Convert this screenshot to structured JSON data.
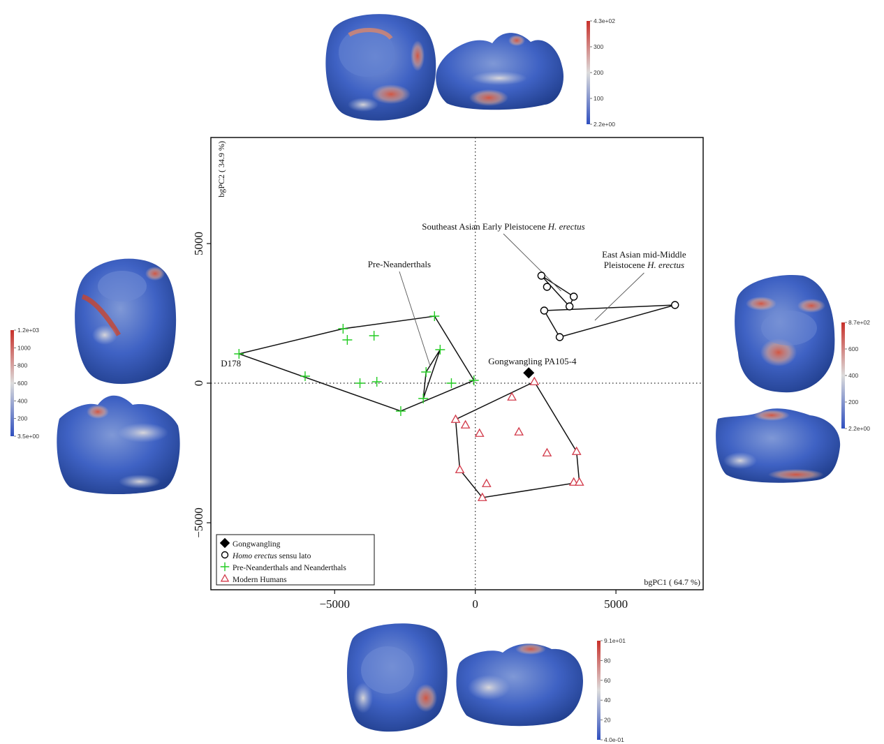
{
  "chart_data": {
    "type": "scatter",
    "xlabel": "bgPC1 ( 64.7 %)",
    "ylabel": "bgPC2 ( 34.9 %)",
    "xlim": [
      -9400,
      8100
    ],
    "ylim": [
      -7400,
      8800
    ],
    "xticks": [
      {
        "value": -5000,
        "label": "−5000"
      },
      {
        "value": 0,
        "label": "0"
      },
      {
        "value": 5000,
        "label": "5000"
      }
    ],
    "yticks": [
      {
        "value": -5000,
        "label": "−5000"
      },
      {
        "value": 0,
        "label": "0"
      },
      {
        "value": 5000,
        "label": "5000"
      }
    ],
    "reference_lines": {
      "x": 0,
      "y": 0,
      "style": "dotted"
    },
    "series": [
      {
        "name": "Gongwangling",
        "marker": "diamond",
        "color": "#000000",
        "points": [
          [
            1900,
            370
          ]
        ],
        "hull": []
      },
      {
        "name": "Homo erectus sensu lato",
        "marker": "circle",
        "color": "#000000",
        "points": [
          [
            2350,
            3850
          ],
          [
            2550,
            3450
          ],
          [
            3500,
            3100
          ],
          [
            3350,
            2750
          ],
          [
            2450,
            2600
          ],
          [
            3000,
            1650
          ],
          [
            7100,
            2800
          ]
        ],
        "hull": [
          [
            [
              2350,
              3850
            ],
            [
              3500,
              3100
            ],
            [
              3350,
              2750
            ],
            [
              2350,
              3850
            ]
          ],
          [
            [
              2450,
              2600
            ],
            [
              7100,
              2800
            ],
            [
              3000,
              1650
            ],
            [
              2450,
              2600
            ]
          ]
        ]
      },
      {
        "name": "Pre-Neanderthals and Neanderthals",
        "marker": "plus",
        "color": "#22cc22",
        "points": [
          [
            -8400,
            1050
          ],
          [
            -4700,
            1950
          ],
          [
            -4550,
            1550
          ],
          [
            -3600,
            1700
          ],
          [
            -1450,
            2400
          ],
          [
            -1250,
            1200
          ],
          [
            -1750,
            400
          ],
          [
            -6050,
            250
          ],
          [
            -4100,
            0
          ],
          [
            -3500,
            50
          ],
          [
            -850,
            0
          ],
          [
            -50,
            100
          ],
          [
            -1850,
            -550
          ],
          [
            -2650,
            -1000
          ]
        ],
        "hull": [
          [
            [
              -8400,
              1050
            ],
            [
              -4700,
              1950
            ],
            [
              -1450,
              2400
            ],
            [
              -50,
              100
            ],
            [
              -2650,
              -1000
            ],
            [
              -8400,
              1050
            ]
          ],
          [
            [
              -1250,
              1200
            ],
            [
              -1750,
              400
            ],
            [
              -1850,
              -550
            ],
            [
              -1250,
              1200
            ]
          ]
        ]
      },
      {
        "name": "Modern Humans",
        "marker": "triangle",
        "color": "#d23a4a",
        "points": [
          [
            2100,
            50
          ],
          [
            1300,
            -500
          ],
          [
            -700,
            -1300
          ],
          [
            -350,
            -1500
          ],
          [
            150,
            -1800
          ],
          [
            1550,
            -1750
          ],
          [
            2550,
            -2500
          ],
          [
            3600,
            -2450
          ],
          [
            -550,
            -3100
          ],
          [
            400,
            -3600
          ],
          [
            3500,
            -3550
          ],
          [
            3700,
            -3550
          ],
          [
            250,
            -4100
          ]
        ],
        "hull": [
          [
            [
              2100,
              50
            ],
            [
              3600,
              -2450
            ],
            [
              3700,
              -3550
            ],
            [
              250,
              -4100
            ],
            [
              -550,
              -3100
            ],
            [
              -700,
              -1300
            ],
            [
              2100,
              50
            ]
          ]
        ]
      }
    ],
    "annotations": [
      {
        "text": "D178",
        "x": -8400,
        "y": 1050
      },
      {
        "text": "Gongwangling PA105-4",
        "x": 1900,
        "y": 370
      },
      {
        "text": "Pre-Neanderthals",
        "x": -2700,
        "y": 4150,
        "target": [
          -1600,
          600
        ]
      },
      {
        "text_parts": [
          "Southeast Asian Early Pleistocene ",
          "H. erectus"
        ],
        "x": 1000,
        "y": 5500,
        "target": [
          3050,
          3300
        ]
      },
      {
        "text_lines": [
          "East Asian mid-Middle",
          "Pleistocene H. erectus"
        ],
        "x": 6000,
        "y": 4500,
        "target": [
          4250,
          2250
        ]
      }
    ]
  },
  "legend": {
    "placement": "bottom-left",
    "entries": [
      {
        "symbol": "diamond",
        "color": "#000000",
        "label": "Gongwangling"
      },
      {
        "symbol": "circle",
        "color": "#000000",
        "label_italic": "Homo erectus",
        "label": " sensu lato"
      },
      {
        "symbol": "plus",
        "color": "#22cc22",
        "label": "Pre-Neanderthals and Neanderthals"
      },
      {
        "symbol": "triangle",
        "color": "#d23a4a",
        "label": "Modern Humans"
      }
    ]
  },
  "colorbars": [
    {
      "id": "top",
      "labels": [
        "4.3e+02",
        "300",
        "200",
        "100",
        "2.2e+00"
      ]
    },
    {
      "id": "left",
      "labels": [
        "1.2e+03",
        "1000",
        "800",
        "600",
        "400",
        "200",
        "3.5e+00"
      ]
    },
    {
      "id": "right",
      "labels": [
        "8.7e+02",
        "600",
        "400",
        "200",
        "2.2e+00"
      ]
    },
    {
      "id": "bottom",
      "labels": [
        "9.1e+01",
        "80",
        "60",
        "40",
        "20",
        "4.0e-01"
      ]
    }
  ],
  "colors": {
    "heat_low": "#2f4fbf",
    "heat_mid": "#dcdcdc",
    "heat_high": "#c8302a"
  },
  "icons": [
    "tooth-3d-render-icon"
  ]
}
